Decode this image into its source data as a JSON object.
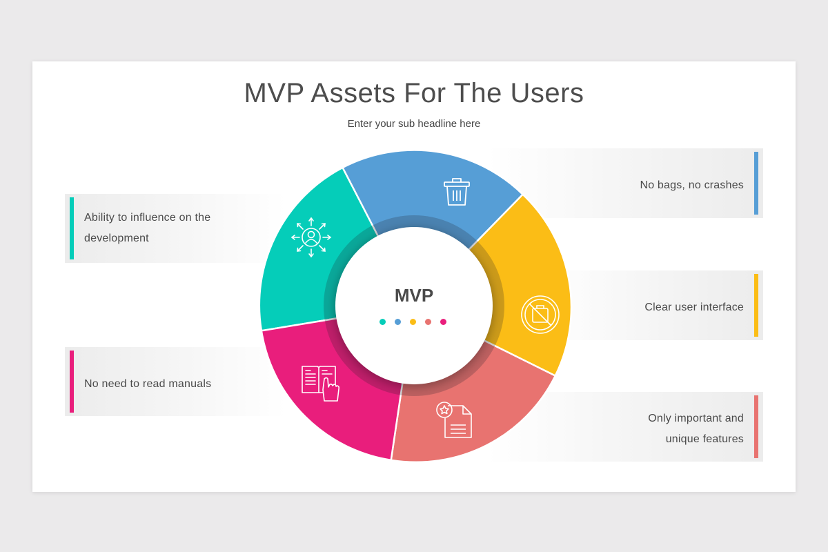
{
  "title": "MVP Assets For The Users",
  "subtitle": "Enter your sub headline here",
  "center": {
    "label": "MVP"
  },
  "colors": {
    "teal": "#05cdb9",
    "blue": "#569ed6",
    "yellow": "#fbbd16",
    "salmon": "#e87370",
    "magenta": "#e91e7c"
  },
  "segments": [
    {
      "id": "teal",
      "color": "#05cdb9",
      "icon": "user-network-icon"
    },
    {
      "id": "blue",
      "color": "#569ed6",
      "icon": "trash-bin-icon"
    },
    {
      "id": "yellow",
      "color": "#fbbd16",
      "icon": "no-bugs-icon"
    },
    {
      "id": "salmon",
      "color": "#e87370",
      "icon": "document-star-icon"
    },
    {
      "id": "magenta",
      "color": "#e91e7c",
      "icon": "manual-touch-icon"
    }
  ],
  "items": {
    "left_top": {
      "line1": "Ability to influence on the",
      "line2": "development",
      "color": "#05cdb9"
    },
    "left_bottom": {
      "line1": "No need to read manuals",
      "color": "#e91e7c"
    },
    "right_top": {
      "line1": "No bags, no crashes",
      "color": "#569ed6"
    },
    "right_middle": {
      "line1": "Clear user interface",
      "color": "#fbbd16"
    },
    "right_bottom": {
      "line1": "Only important and",
      "line2": "unique features",
      "color": "#e87370"
    }
  }
}
